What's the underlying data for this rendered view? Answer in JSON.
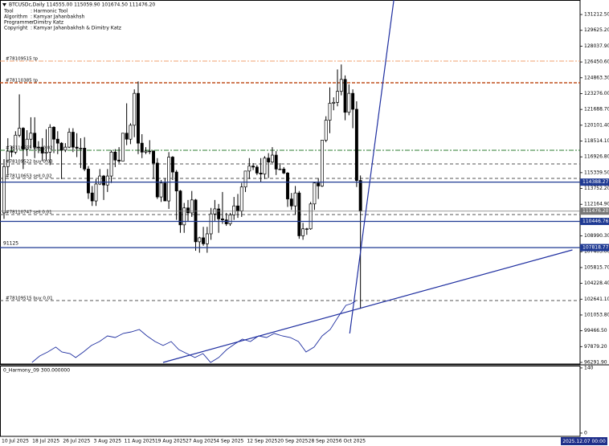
{
  "chart_data": {
    "type": "candlestick",
    "title": "BTCUSDc,Daily  114555.00 115059.90 101674.50 111476.20",
    "info": [
      {
        "key": "Tool",
        "value": ": Harmonic Tool"
      },
      {
        "key": "Algorithm",
        "value": ": Kamyar Jahanbakhsh"
      },
      {
        "key": "Programmer",
        "value": ": Dimitry Katz"
      },
      {
        "key": "Copyright",
        "value": ": Kamyar Jahanbakhsh & Dimitry Katz"
      }
    ],
    "categories": [
      "10 Jul 2025",
      null,
      null,
      null,
      null,
      null,
      null,
      null,
      "18 Jul 2025",
      null,
      null,
      null,
      null,
      null,
      null,
      null,
      "26 Jul 2025",
      null,
      null,
      null,
      null,
      null,
      null,
      null,
      "3 Aug 2025",
      null,
      null,
      null,
      null,
      null,
      null,
      null,
      "11 Aug 2025",
      null,
      null,
      null,
      null,
      null,
      null,
      null,
      "19 Aug 2025",
      null,
      null,
      null,
      null,
      null,
      null,
      null,
      "27 Aug 2025",
      null,
      null,
      null,
      null,
      null,
      null,
      null,
      "4 Sep 2025",
      null,
      null,
      null,
      null,
      null,
      null,
      null,
      "12 Sep 2025",
      null,
      null,
      null,
      null,
      null,
      null,
      null,
      "20 Sep 2025",
      null,
      null,
      null,
      null,
      null,
      null,
      null,
      "28 Sep 2025",
      null,
      null,
      null,
      null,
      null,
      null,
      null,
      "6 Oct 2025",
      null,
      null,
      null,
      null,
      null
    ],
    "open": [
      111300,
      115950,
      117500,
      117400,
      119100,
      119800,
      117700,
      118700,
      119300,
      117900,
      117900,
      117300,
      117400,
      119900,
      118700,
      118300,
      117600,
      117900,
      119400,
      117900,
      117800,
      117800,
      115700,
      113300,
      112500,
      114200,
      115000,
      114100,
      115000,
      117400,
      116600,
      116500,
      119300,
      118700,
      120100,
      123300,
      118300,
      117400,
      117500,
      117500,
      116300,
      112900,
      114300,
      112500,
      116900,
      115400,
      113500,
      110100,
      111800,
      111300,
      112600,
      108400,
      108800,
      108200,
      109200,
      111200,
      111700,
      110700,
      110600,
      110200,
      111100,
      112000,
      111500,
      113900,
      115500,
      116000,
      115900,
      115300,
      115200,
      116800,
      116400,
      117100,
      115700,
      115700,
      115300,
      112700,
      112000,
      113300,
      109000,
      109700,
      109700,
      112200,
      114300,
      114000,
      118600,
      120600,
      122300,
      122400,
      123500,
      124700,
      121400,
      123300,
      121700,
      114555
    ],
    "high": [
      116700,
      118800,
      118000,
      119500,
      123200,
      119900,
      119600,
      120900,
      120900,
      118500,
      118800,
      119700,
      120200,
      120000,
      119500,
      118400,
      118300,
      119800,
      119800,
      119300,
      118800,
      118900,
      116000,
      114000,
      114700,
      115700,
      115100,
      115700,
      117600,
      117700,
      117900,
      119300,
      122300,
      120300,
      123700,
      124500,
      119200,
      117900,
      118600,
      117600,
      116800,
      114600,
      114800,
      117400,
      117000,
      115600,
      113600,
      112300,
      112600,
      113500,
      112700,
      108900,
      109900,
      109900,
      111800,
      112600,
      112200,
      113400,
      111300,
      111300,
      112900,
      113200,
      114300,
      115500,
      116800,
      116300,
      116100,
      116800,
      117000,
      117300,
      117900,
      117500,
      116300,
      115900,
      115400,
      113300,
      114000,
      113500,
      110300,
      109800,
      112400,
      114400,
      114800,
      118600,
      121000,
      123900,
      122900,
      125700,
      126200,
      125100,
      124200,
      123700,
      122500,
      115059.9
    ],
    "low": [
      110700,
      115200,
      116900,
      117200,
      118900,
      115700,
      117000,
      117800,
      116800,
      117300,
      116500,
      116500,
      116100,
      117300,
      117200,
      114700,
      117400,
      117800,
      117400,
      116900,
      115800,
      115500,
      112700,
      112000,
      112000,
      114100,
      112600,
      113400,
      114300,
      115900,
      116300,
      116500,
      118100,
      118200,
      118900,
      117200,
      116800,
      117200,
      117200,
      114700,
      112700,
      112400,
      112600,
      111700,
      114600,
      110600,
      109300,
      109300,
      110400,
      110900,
      107500,
      107300,
      108000,
      107300,
      108600,
      110500,
      109300,
      110200,
      110000,
      110000,
      110600,
      110800,
      110900,
      113400,
      114700,
      115600,
      115100,
      114400,
      114700,
      114800,
      116300,
      115100,
      115600,
      115200,
      111900,
      111600,
      111100,
      108700,
      108600,
      109100,
      109600,
      111600,
      112700,
      113900,
      118400,
      119300,
      121600,
      122000,
      123100,
      120600,
      121100,
      119800,
      113900,
      101674.5
    ],
    "close": [
      115950,
      117500,
      117400,
      119100,
      119800,
      117700,
      118700,
      119300,
      117900,
      117900,
      117300,
      117400,
      119900,
      118700,
      118300,
      117600,
      117900,
      119400,
      117900,
      117800,
      117800,
      115700,
      113300,
      112500,
      114200,
      115000,
      114100,
      115000,
      117400,
      116600,
      116500,
      119300,
      118700,
      120100,
      123300,
      118300,
      117400,
      117500,
      117500,
      116300,
      112900,
      114300,
      112500,
      116900,
      115400,
      113500,
      110100,
      111800,
      111300,
      112600,
      108400,
      108800,
      108200,
      109200,
      111200,
      111700,
      110700,
      110600,
      110200,
      111100,
      112000,
      111500,
      113900,
      115500,
      116000,
      115900,
      115300,
      115200,
      116800,
      116400,
      117100,
      115700,
      115700,
      115300,
      112700,
      112000,
      113300,
      109000,
      109700,
      109700,
      112200,
      114300,
      114000,
      118600,
      120600,
      122300,
      122400,
      123500,
      124700,
      121400,
      123300,
      121700,
      114555,
      111476.2
    ],
    "up_color": "#ffffff",
    "down_color": "#000000",
    "wick_color": "#000000",
    "xlim": [
      -1.05,
      150.3
    ],
    "ylim": [
      96130,
      132670
    ],
    "yticks": [
      {
        "value": 96291.9,
        "label": "96291.90"
      },
      {
        "value": 97879.2,
        "label": "97879.20"
      },
      {
        "value": 99466.5,
        "label": "99466.50"
      },
      {
        "value": 101053.8,
        "label": "101053.80"
      },
      {
        "value": 102641.1,
        "label": "102641.10"
      },
      {
        "value": 104228.4,
        "label": "104228.40"
      },
      {
        "value": 105815.7,
        "label": "105815.70"
      },
      {
        "value": 107403,
        "label": "107403.00"
      },
      {
        "value": 108990.3,
        "label": "108990.30"
      },
      {
        "value": 112164.9,
        "label": "112164.90"
      },
      {
        "value": 113752.2,
        "label": "113752.20"
      },
      {
        "value": 115339.5,
        "label": "115339.50"
      },
      {
        "value": 116926.8,
        "label": "116926.80"
      },
      {
        "value": 118514.1,
        "label": "118514.10"
      },
      {
        "value": 120101.4,
        "label": "120101.40"
      },
      {
        "value": 121688.7,
        "label": "121688.70"
      },
      {
        "value": 123276,
        "label": "123276.00"
      },
      {
        "value": 124863.3,
        "label": "124863.30"
      },
      {
        "value": 126450.6,
        "label": "126450.60"
      },
      {
        "value": 128037.9,
        "label": "128037.90"
      },
      {
        "value": 129625.2,
        "label": "129625.20"
      },
      {
        "value": 131212.5,
        "label": "131212.50"
      }
    ],
    "price_markers": [
      {
        "value": 114388.27,
        "label": "114388.27",
        "color": "#1f3a93"
      },
      {
        "value": 111476.2,
        "label": "111476.20",
        "color": "#777777"
      },
      {
        "value": 110446.76,
        "label": "110446.76",
        "color": "#1f3a93"
      },
      {
        "value": 107818.77,
        "label": "107818.77",
        "color": "#1f3a93",
        "note": "91125"
      }
    ],
    "levels": [
      {
        "label": "#78109515 tp",
        "value": 126539,
        "color": "#f0a070",
        "dash": "6 2 2 2"
      },
      {
        "label": "#78110385 tp",
        "value": 124361,
        "color": "#c0501e",
        "dash": "4 2"
      },
      {
        "label": "#78110655 buy 0.02",
        "value": 117586,
        "color": "#2e7d32",
        "dash": "6 2 2 2"
      },
      {
        "label": "#78109522 buy 0.03",
        "value": 116214,
        "color": "#555555",
        "dash": "4 3"
      },
      {
        "label": "#78110653 sell 0.02",
        "value": 114763,
        "color": "#555555",
        "dash": "4 3"
      },
      {
        "label": "#78110747 sell 0.01",
        "value": 111133,
        "color": "#555555",
        "dash": "4 3"
      },
      {
        "label": "#78109515 buy 0.01",
        "value": 102503,
        "color": "#555555",
        "dash": "4 3"
      }
    ],
    "trendlines": [
      {
        "start": [
          90.2,
          99200
        ],
        "end": [
          101.7,
          132669
        ],
        "color": "#1f2fa0"
      },
      {
        "start": [
          41.5,
          96292
        ],
        "end": [
          148.3,
          107584
        ],
        "color": "#1f2fa0"
      }
    ],
    "overlay": {
      "color": "#1f2fa0",
      "x": [
        7.3,
        9.3,
        11.4,
        13.5,
        15.1,
        17.2,
        18.7,
        20.7,
        22.8,
        24.9,
        27.0,
        29.0,
        31.1,
        33.2,
        35.3,
        37.3,
        39.4,
        41.5,
        43.6,
        45.6,
        47.7,
        49.8,
        51.9,
        53.9,
        56.0,
        58.1,
        60.2,
        62.2,
        64.3,
        66.4,
        68.5,
        70.5,
        72.6,
        74.7,
        76.8,
        78.8,
        80.9,
        83.0,
        85.1,
        87.1,
        89.2,
        90.5,
        91.7
      ],
      "values": [
        96290,
        96940,
        97340,
        97830,
        97340,
        97180,
        96780,
        97340,
        97990,
        98390,
        98950,
        98790,
        99200,
        99360,
        99600,
        98950,
        98390,
        97990,
        98390,
        97580,
        97180,
        96780,
        97180,
        96290,
        96780,
        97580,
        98150,
        98630,
        98390,
        98950,
        98790,
        99200,
        98950,
        98790,
        98390,
        97340,
        97830,
        98950,
        99600,
        100810,
        102020,
        102180,
        102420
      ]
    },
    "subwindow": {
      "title": "0_Harmony_09 300.000000",
      "ylim": [
        -7,
        145
      ],
      "yticks": [
        140,
        0
      ]
    },
    "cursor_time": "2025.12.07 00:00"
  }
}
